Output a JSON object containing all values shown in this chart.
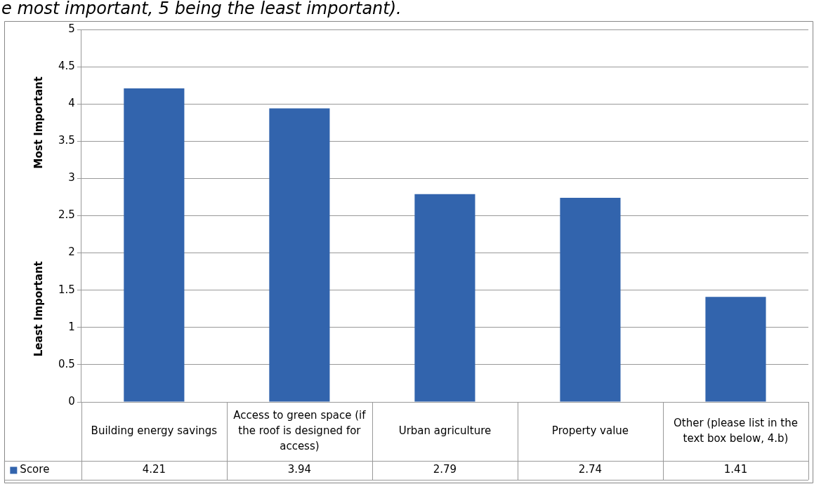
{
  "chart_data": {
    "type": "bar",
    "title": "e most important, 5 being the least important).",
    "categories": [
      "Building energy savings",
      "Access to green space (if the roof is designed for access)",
      "Urban agriculture",
      "Property value",
      "Other (please list in the text box below, 4.b)"
    ],
    "series": [
      {
        "name": "Score",
        "color": "#3264ad",
        "values": [
          4.21,
          3.94,
          2.79,
          2.74,
          1.41
        ]
      }
    ],
    "ylim": [
      0,
      5
    ],
    "yticks": [
      0,
      {
        "value": 0.5,
        "label": "0.5"
      },
      1,
      {
        "value": 1.5,
        "label": "1.5"
      },
      2,
      {
        "value": 2.5,
        "label": "2.5"
      },
      3,
      {
        "value": 3.5,
        "label": "3.5"
      },
      4,
      {
        "value": 4.5,
        "label": "4.5"
      },
      5
    ],
    "grid": "y",
    "legend": "bottom left",
    "data_labels": true,
    "annotations": [
      "Most Important",
      "Least Important"
    ]
  }
}
